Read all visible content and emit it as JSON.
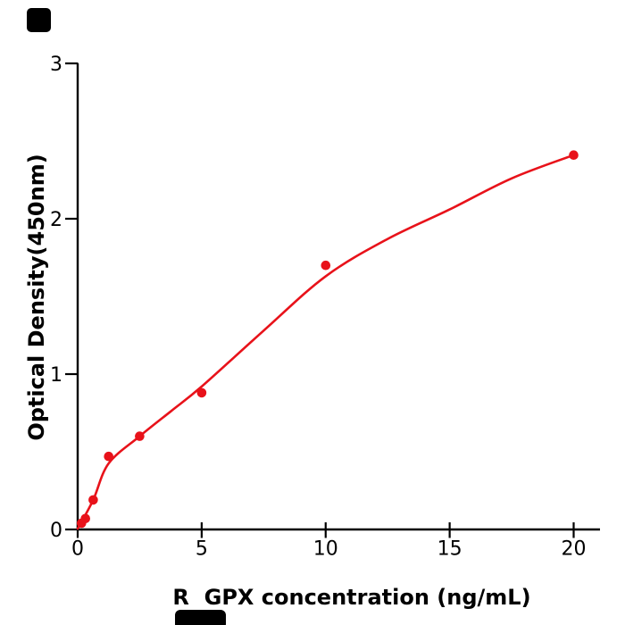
{
  "page": {
    "background": "#ffffff"
  },
  "watermarks": {
    "top_left_box_color": "#000000",
    "bottom_box_color": "#000000"
  },
  "chart_data": {
    "type": "scatter",
    "title": "",
    "xlabel": "R  GPX concentration (ng/mL)",
    "ylabel": "Optical Density(450nm)",
    "xlim": [
      0,
      21.1
    ],
    "ylim": [
      0,
      3
    ],
    "x_ticks": [
      0,
      5,
      10,
      15,
      20
    ],
    "y_ticks": [
      0,
      1,
      2,
      3
    ],
    "grid": false,
    "legend": "none",
    "colors": {
      "points": "#e8121a",
      "curve": "#e8121a",
      "axis": "#000000",
      "text": "#000000"
    },
    "series": [
      {
        "name": "standard-points",
        "type": "scatter",
        "x": [
          0.156,
          0.3125,
          0.625,
          1.25,
          2.5,
          5,
          10,
          20
        ],
        "y": [
          0.04,
          0.07,
          0.19,
          0.47,
          0.6,
          0.88,
          1.7,
          2.41
        ]
      },
      {
        "name": "fitted-curve",
        "type": "line",
        "x": [
          0,
          0.625,
          1.25,
          2.5,
          3.75,
          5,
          7.5,
          10,
          12.5,
          15,
          17.5,
          20
        ],
        "y": [
          0.005,
          0.19,
          0.425,
          0.6,
          0.76,
          0.92,
          1.28,
          1.63,
          1.87,
          2.06,
          2.26,
          2.41
        ]
      }
    ]
  }
}
